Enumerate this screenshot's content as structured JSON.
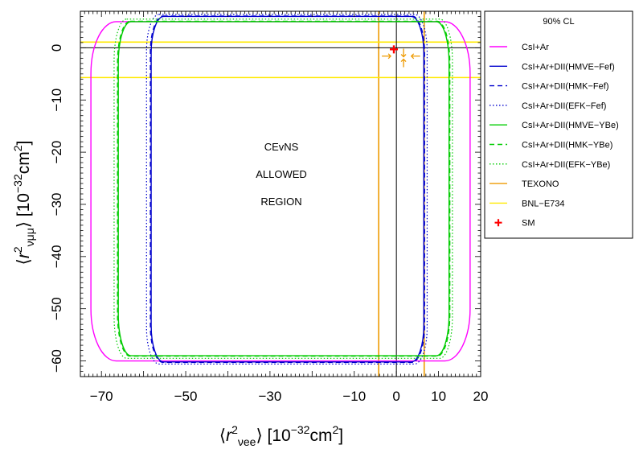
{
  "chart_data": {
    "type": "line",
    "title": "",
    "xlabel": "⟨r²_νee⟩ [10⁻³²cm²]",
    "ylabel": "⟨r²_νμμ⟩ [10⁻³²cm²]",
    "xlim": [
      -75,
      20
    ],
    "ylim": [
      -63,
      7
    ],
    "x_ticks": [
      -70,
      -50,
      -30,
      -10,
      0,
      10,
      20
    ],
    "y_ticks": [
      0,
      -10,
      -20,
      -30,
      -40,
      -50,
      -60
    ],
    "x_tick_labels": [
      "−70",
      "−50",
      "−30",
      "−10",
      "0",
      "10",
      "20"
    ],
    "y_tick_labels": [
      "0",
      "−10",
      "−20",
      "−30",
      "−40",
      "−50",
      "−60"
    ],
    "legend": {
      "title": "90% CL",
      "placement": "right"
    },
    "annotation": [
      "CEvNS",
      "ALLOWED",
      "REGION"
    ],
    "series": [
      {
        "name": "CsI+Ar",
        "color": "#ff00ff",
        "dash": "solid",
        "box": {
          "x": [
            -72.5,
            17.5
          ],
          "y": [
            -60,
            5
          ]
        },
        "r": [
          6,
          10
        ]
      },
      {
        "name": "CsI+Ar+DII(HMVE−Fef)",
        "color": "#0000cd",
        "dash": "solid",
        "box": {
          "x": [
            -58.2,
            6.5
          ],
          "y": [
            -60.2,
            6
          ]
        },
        "r": [
          3,
          7
        ]
      },
      {
        "name": "CsI+Ar+DII(HMK−Fef)",
        "color": "#0000cd",
        "dash": "dashed",
        "box": {
          "x": [
            -58.4,
            6.7
          ],
          "y": [
            -60.3,
            6.1
          ]
        },
        "r": [
          3,
          7
        ]
      },
      {
        "name": "CsI+Ar+DII(EFK−Fef)",
        "color": "#0000cd",
        "dash": "dotted",
        "box": {
          "x": [
            -59.3,
            7.3
          ],
          "y": [
            -60.6,
            6.4
          ]
        },
        "r": [
          3,
          7
        ]
      },
      {
        "name": "CsI+Ar+DII(HMVE−YBe)",
        "color": "#00cc00",
        "dash": "solid",
        "box": {
          "x": [
            -66,
            12.5
          ],
          "y": [
            -59,
            5
          ]
        },
        "r": [
          3,
          8
        ]
      },
      {
        "name": "CsI+Ar+DII(HMK−YBe)",
        "color": "#00cc00",
        "dash": "dashed",
        "box": {
          "x": [
            -66.2,
            12.7
          ],
          "y": [
            -59.1,
            5.1
          ]
        },
        "r": [
          3,
          8
        ]
      },
      {
        "name": "CsI+Ar+DII(EFK−YBe)",
        "color": "#00cc00",
        "dash": "dotted",
        "box": {
          "x": [
            -67,
            13.3
          ],
          "y": [
            -59.5,
            5.5
          ]
        },
        "r": [
          3,
          8
        ]
      }
    ],
    "bands": [
      {
        "name": "TEXONO",
        "color": "#ee9a00",
        "orientation": "vertical",
        "values": [
          -4.2,
          6.6
        ]
      },
      {
        "name": "BNL−E734",
        "color": "#ffea00",
        "orientation": "horizontal",
        "values": [
          -5.7,
          1.1
        ]
      }
    ],
    "reference_lines": {
      "x": 0,
      "y": 0,
      "color": "#000000"
    },
    "sm_point": {
      "name": "SM",
      "x": -0.6,
      "y": -0.3,
      "color": "#ff0000"
    },
    "arrows": [
      {
        "x": 1.7,
        "y": -1.1,
        "dir": "down"
      },
      {
        "x": 1.7,
        "y": -2.8,
        "dir": "up"
      },
      {
        "x": -2.3,
        "y": -1.6,
        "dir": "right"
      },
      {
        "x": 4.5,
        "y": -1.6,
        "dir": "left"
      }
    ]
  }
}
